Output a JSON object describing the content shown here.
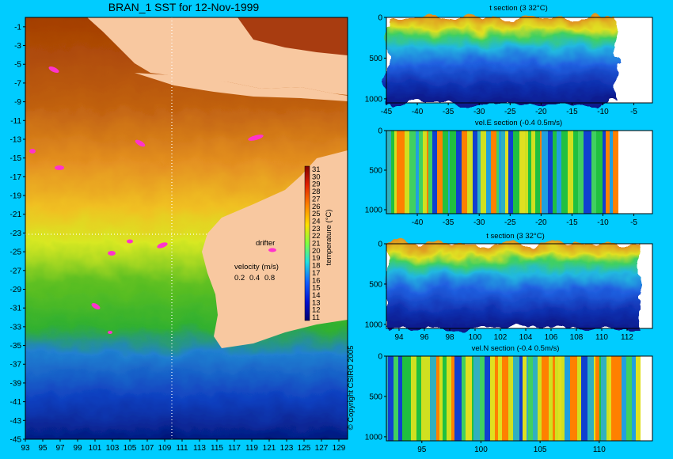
{
  "chart_data": [
    {
      "type": "heatmap",
      "title": "BRAN_1 SST for 12-Nov-1999",
      "x_ticks": [
        "93",
        "95",
        "97",
        "99",
        "101",
        "103",
        "105",
        "107",
        "109",
        "111",
        "113",
        "115",
        "117",
        "119",
        "121",
        "123",
        "125",
        "127",
        "129"
      ],
      "y_ticks": [
        "-1",
        "-3",
        "-5",
        "-7",
        "-9",
        "-11",
        "-13",
        "-15",
        "-17",
        "-19",
        "-21",
        "-23",
        "-25",
        "-27",
        "-29",
        "-31",
        "-33",
        "-35",
        "-37",
        "-39",
        "-41",
        "-43",
        "-45"
      ],
      "xlim": [
        93,
        130
      ],
      "ylim": [
        -45,
        0
      ],
      "colorbar": {
        "label": "temperature (°C)",
        "range": [
          11,
          31
        ],
        "ticks": [
          "31",
          "30",
          "29",
          "28",
          "27",
          "26",
          "25",
          "24",
          "23",
          "22",
          "21",
          "20",
          "19",
          "18",
          "17",
          "16",
          "15",
          "14",
          "13",
          "12",
          "11"
        ]
      },
      "legend": {
        "drifter_label": "drifter",
        "velocity_label": "velocity (m/s)",
        "velocity_values": [
          "0.2",
          "0.4",
          "0.8"
        ]
      },
      "copyright": "© Copyright CSIRO 2005",
      "colors": {
        "land": "#f8c8a0",
        "drifter": "#ff33cc",
        "section_line": "#ffffff"
      }
    },
    {
      "type": "heatmap",
      "title": "t section (3       32°C)",
      "x_ticks": [
        "-45",
        "-40",
        "-35",
        "-30",
        "-25",
        "-20",
        "-15",
        "-10",
        "-5"
      ],
      "y_ticks": [
        "0",
        "500",
        "1000"
      ],
      "xlim": [
        -45,
        -2
      ],
      "ylim": [
        1050,
        0
      ]
    },
    {
      "type": "heatmap",
      "title": "vel.E section (-0.4       0.5m/s)",
      "x_ticks": [
        "-40",
        "-35",
        "-30",
        "-25",
        "-20",
        "-15",
        "-10",
        "-5"
      ],
      "y_ticks": [
        "0",
        "500",
        "1000"
      ],
      "xlim": [
        -45,
        -2
      ],
      "ylim": [
        1050,
        0
      ]
    },
    {
      "type": "heatmap",
      "title": "t section (3       32°C)",
      "x_ticks": [
        "94",
        "96",
        "98",
        "100",
        "102",
        "104",
        "106",
        "108",
        "110",
        "112"
      ],
      "y_ticks": [
        "0",
        "500",
        "1000"
      ],
      "xlim": [
        93,
        114
      ],
      "ylim": [
        1050,
        0
      ]
    },
    {
      "type": "heatmap",
      "title": "vel.N section (-0.4       0.5m/s)",
      "x_ticks": [
        "95",
        "100",
        "105",
        "110"
      ],
      "y_ticks": [
        "0",
        "500",
        "1000"
      ],
      "xlim": [
        92,
        114.5
      ],
      "ylim": [
        1050,
        0
      ]
    }
  ]
}
